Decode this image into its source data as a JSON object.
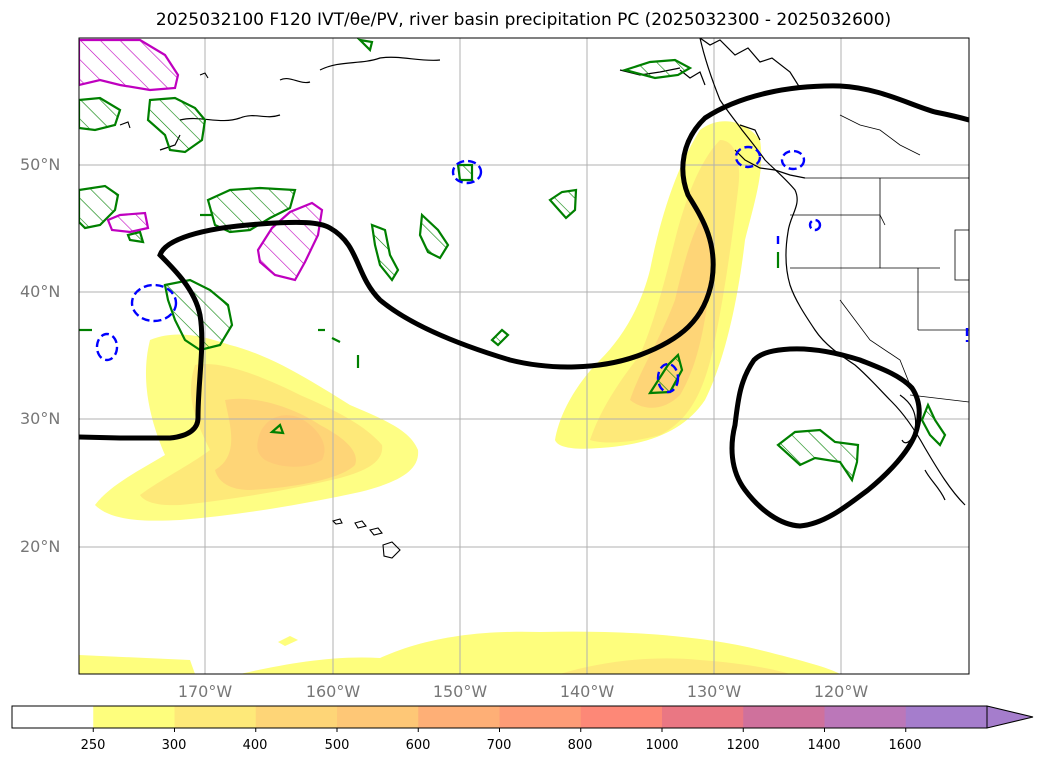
{
  "title": {
    "text": "2025032100 F120 IVT/θe/PV, river basin precipitation PC (2025032300 - 2025032600)"
  },
  "axes": {
    "lat_labels": [
      "50°N",
      "40°N",
      "30°N",
      "20°N"
    ],
    "lon_labels": [
      "170°W",
      "160°W",
      "150°W",
      "140°W",
      "130°W",
      "120°W"
    ]
  },
  "colorbar": {
    "ticks": [
      "250",
      "300",
      "400",
      "500",
      "600",
      "700",
      "800",
      "1000",
      "1200",
      "1400",
      "1600"
    ],
    "colors": [
      "#ffffff",
      "#fefe7d",
      "#fee979",
      "#fed577",
      "#fec776",
      "#feaf76",
      "#fe9c77",
      "#fd8877",
      "#ea7783",
      "#cf719c",
      "#bb77b9",
      "#a57dcc"
    ]
  },
  "colors": {
    "ivt_light": "#fefe7d",
    "ivt_mid": "#fee979",
    "ivt_dark": "#fed577",
    "theta_contour": "#000000",
    "pv_green": "#008000",
    "pv_magenta": "#bf00bf",
    "blue_dashed": "#0000ff"
  }
}
